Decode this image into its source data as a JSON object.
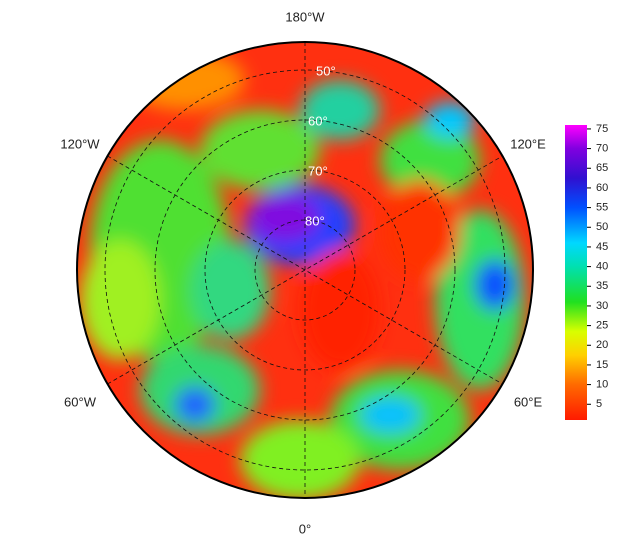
{
  "map": {
    "lon_labels": [
      "180°W",
      "120°W",
      "120°E",
      "60°W",
      "60°E",
      "0°"
    ],
    "lat_labels": [
      "50°",
      "60°",
      "70°",
      "80°"
    ],
    "colorbar": {
      "lim": [
        1,
        76
      ],
      "ticks": [
        5,
        10,
        15,
        20,
        25,
        30,
        35,
        40,
        45,
        50,
        55,
        60,
        65,
        70,
        75
      ]
    }
  }
}
